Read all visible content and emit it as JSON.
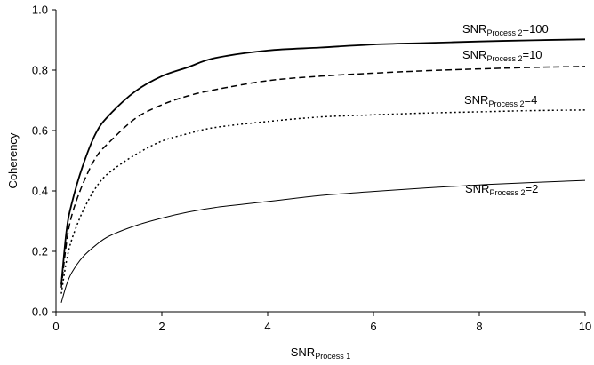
{
  "chart_data": {
    "type": "line",
    "xlabel": {
      "main": "SNR",
      "sub": "Process 1"
    },
    "ylabel": "Coherency",
    "xlim": [
      0,
      10
    ],
    "ylim": [
      0,
      1.0
    ],
    "x_ticks": [
      "0",
      "2",
      "4",
      "6",
      "8",
      "10"
    ],
    "y_ticks": [
      "0.0",
      "0.2",
      "0.4",
      "0.6",
      "0.8",
      "1.0"
    ],
    "grid": false,
    "x": [
      0.1,
      0.2,
      0.3,
      0.5,
      0.75,
      1,
      1.5,
      2,
      2.5,
      3,
      4,
      5,
      6,
      7,
      8,
      9,
      10
    ],
    "series": [
      {
        "name": "SNR Process 2=100",
        "label_main": "SNR",
        "label_sub": "Process 2",
        "label_tail": "=100",
        "style": "solid-thick",
        "values": [
          0.09,
          0.27,
          0.36,
          0.48,
          0.59,
          0.65,
          0.73,
          0.78,
          0.81,
          0.84,
          0.865,
          0.875,
          0.885,
          0.89,
          0.895,
          0.899,
          0.902
        ]
      },
      {
        "name": "SNR Process 2=10",
        "label_main": "SNR",
        "label_sub": "Process 2",
        "label_tail": "=10",
        "style": "dashed",
        "values": [
          0.08,
          0.23,
          0.32,
          0.42,
          0.51,
          0.56,
          0.64,
          0.685,
          0.715,
          0.735,
          0.765,
          0.78,
          0.79,
          0.798,
          0.804,
          0.809,
          0.812
        ]
      },
      {
        "name": "SNR Process 2=4",
        "label_main": "SNR",
        "label_sub": "Process 2",
        "label_tail": "=4",
        "style": "dotted",
        "values": [
          0.06,
          0.17,
          0.24,
          0.33,
          0.41,
          0.46,
          0.52,
          0.565,
          0.59,
          0.61,
          0.63,
          0.645,
          0.652,
          0.658,
          0.662,
          0.666,
          0.668
        ]
      },
      {
        "name": "SNR Process 2=2",
        "label_main": "SNR",
        "label_sub": "Process 2",
        "label_tail": "=2",
        "style": "solid-thin",
        "values": [
          0.03,
          0.09,
          0.13,
          0.18,
          0.22,
          0.25,
          0.285,
          0.31,
          0.33,
          0.345,
          0.365,
          0.385,
          0.398,
          0.41,
          0.42,
          0.428,
          0.435
        ]
      }
    ]
  }
}
